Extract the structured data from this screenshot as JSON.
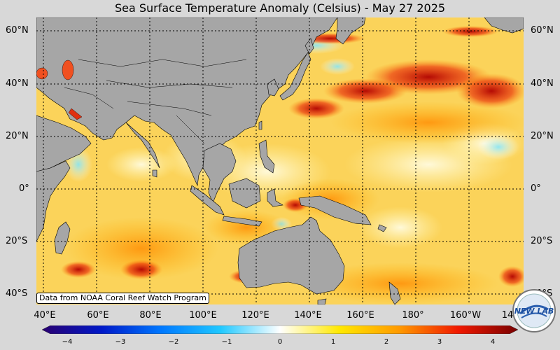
{
  "title": "Sea Surface Temperature Anomaly (Celsius) - May 27 2025",
  "credit": "Data from NOAA Coral Reef Watch Program",
  "lat_labels": [
    "60°N",
    "40°N",
    "20°N",
    "0°",
    "20°S",
    "40°S"
  ],
  "lon_labels": [
    "40°E",
    "60°E",
    "80°E",
    "100°E",
    "120°E",
    "140°E",
    "160°E",
    "180°",
    "160°W",
    "14"
  ],
  "colorbar": {
    "ticks": [
      "−4",
      "−3",
      "−2",
      "−1",
      "0",
      "1",
      "2",
      "3",
      "4"
    ],
    "min": -4,
    "max": 4,
    "colors": [
      "#2a0070",
      "#0018c8",
      "#0078ff",
      "#20c8ff",
      "#ffffff",
      "#ffe800",
      "#ff9a00",
      "#f01800",
      "#780000"
    ]
  },
  "logo_text": "NEW LAB",
  "colors": {
    "land": "#a6a6a6",
    "ocean_warm": "#fbd35a",
    "grid": "#000000"
  }
}
